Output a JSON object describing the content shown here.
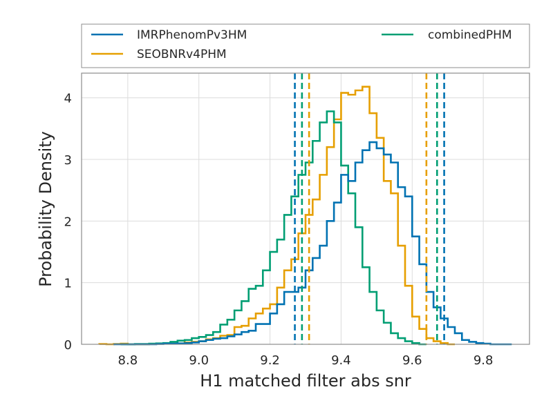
{
  "chart_data": {
    "type": "histogram",
    "xlabel": "H1 matched filter abs snr",
    "ylabel": "Probability Density",
    "xlim": [
      8.67,
      9.93
    ],
    "ylim": [
      0,
      4.4
    ],
    "xticks": [
      8.8,
      9.0,
      9.2,
      9.4,
      9.6,
      9.8
    ],
    "yticks": [
      0,
      1,
      2,
      3,
      4
    ],
    "xtick_labels": [
      "8.8",
      "9.0",
      "9.2",
      "9.4",
      "9.6",
      "9.8"
    ],
    "ytick_labels": [
      "0",
      "1",
      "2",
      "3",
      "4"
    ],
    "grid": true,
    "legend": {
      "placement": "above plot",
      "ncol": 2,
      "entries": [
        "IMRPhenomPv3HM",
        "SEOBNRv4PHM",
        "combinedPHM"
      ]
    },
    "bin_width": 0.02,
    "series": [
      {
        "name": "IMRPhenomPv3HM",
        "color": "#0072b2",
        "bin_start": 8.76,
        "values": [
          0,
          0,
          0,
          0,
          0,
          0,
          0.005,
          0.01,
          0.01,
          0.015,
          0.02,
          0.03,
          0.05,
          0.07,
          0.09,
          0.1,
          0.13,
          0.16,
          0.2,
          0.22,
          0.33,
          0.33,
          0.5,
          0.65,
          0.85,
          0.85,
          0.92,
          1.2,
          1.4,
          1.6,
          2.0,
          2.3,
          2.75,
          2.65,
          2.95,
          3.15,
          3.28,
          3.18,
          3.08,
          2.95,
          2.55,
          2.4,
          1.75,
          1.3,
          0.85,
          0.6,
          0.42,
          0.28,
          0.18,
          0.07,
          0.04,
          0.02,
          0.01,
          0,
          0,
          0
        ],
        "ci": [
          9.27,
          9.69
        ]
      },
      {
        "name": "SEOBNRv4PHM",
        "color": "#e69f00",
        "bin_start": 8.72,
        "values": [
          0.005,
          0,
          0.005,
          0.01,
          0,
          0,
          0,
          0.005,
          0.01,
          0.01,
          0.01,
          0.015,
          0.03,
          0.04,
          0.05,
          0.08,
          0.1,
          0.14,
          0.15,
          0.28,
          0.3,
          0.42,
          0.5,
          0.58,
          0.65,
          0.92,
          1.2,
          1.38,
          1.8,
          2.1,
          2.35,
          2.75,
          3.2,
          3.65,
          4.08,
          4.05,
          4.12,
          4.18,
          3.75,
          3.35,
          2.65,
          2.45,
          1.6,
          0.95,
          0.45,
          0.25,
          0.1,
          0.05,
          0.02,
          0
        ],
        "ci": [
          9.31,
          9.64
        ]
      },
      {
        "name": "combinedPHM",
        "color": "#009e73",
        "bin_start": 8.78,
        "values": [
          0,
          0,
          0.005,
          0.005,
          0.01,
          0.015,
          0.02,
          0.04,
          0.06,
          0.07,
          0.1,
          0.12,
          0.15,
          0.2,
          0.32,
          0.4,
          0.55,
          0.7,
          0.9,
          0.95,
          1.2,
          1.5,
          1.7,
          2.1,
          2.4,
          2.75,
          2.95,
          3.3,
          3.6,
          3.78,
          3.6,
          2.9,
          2.45,
          1.9,
          1.25,
          0.85,
          0.55,
          0.35,
          0.18,
          0.1,
          0.05,
          0.02,
          0
        ],
        "ci": [
          9.29,
          9.67
        ]
      }
    ]
  }
}
